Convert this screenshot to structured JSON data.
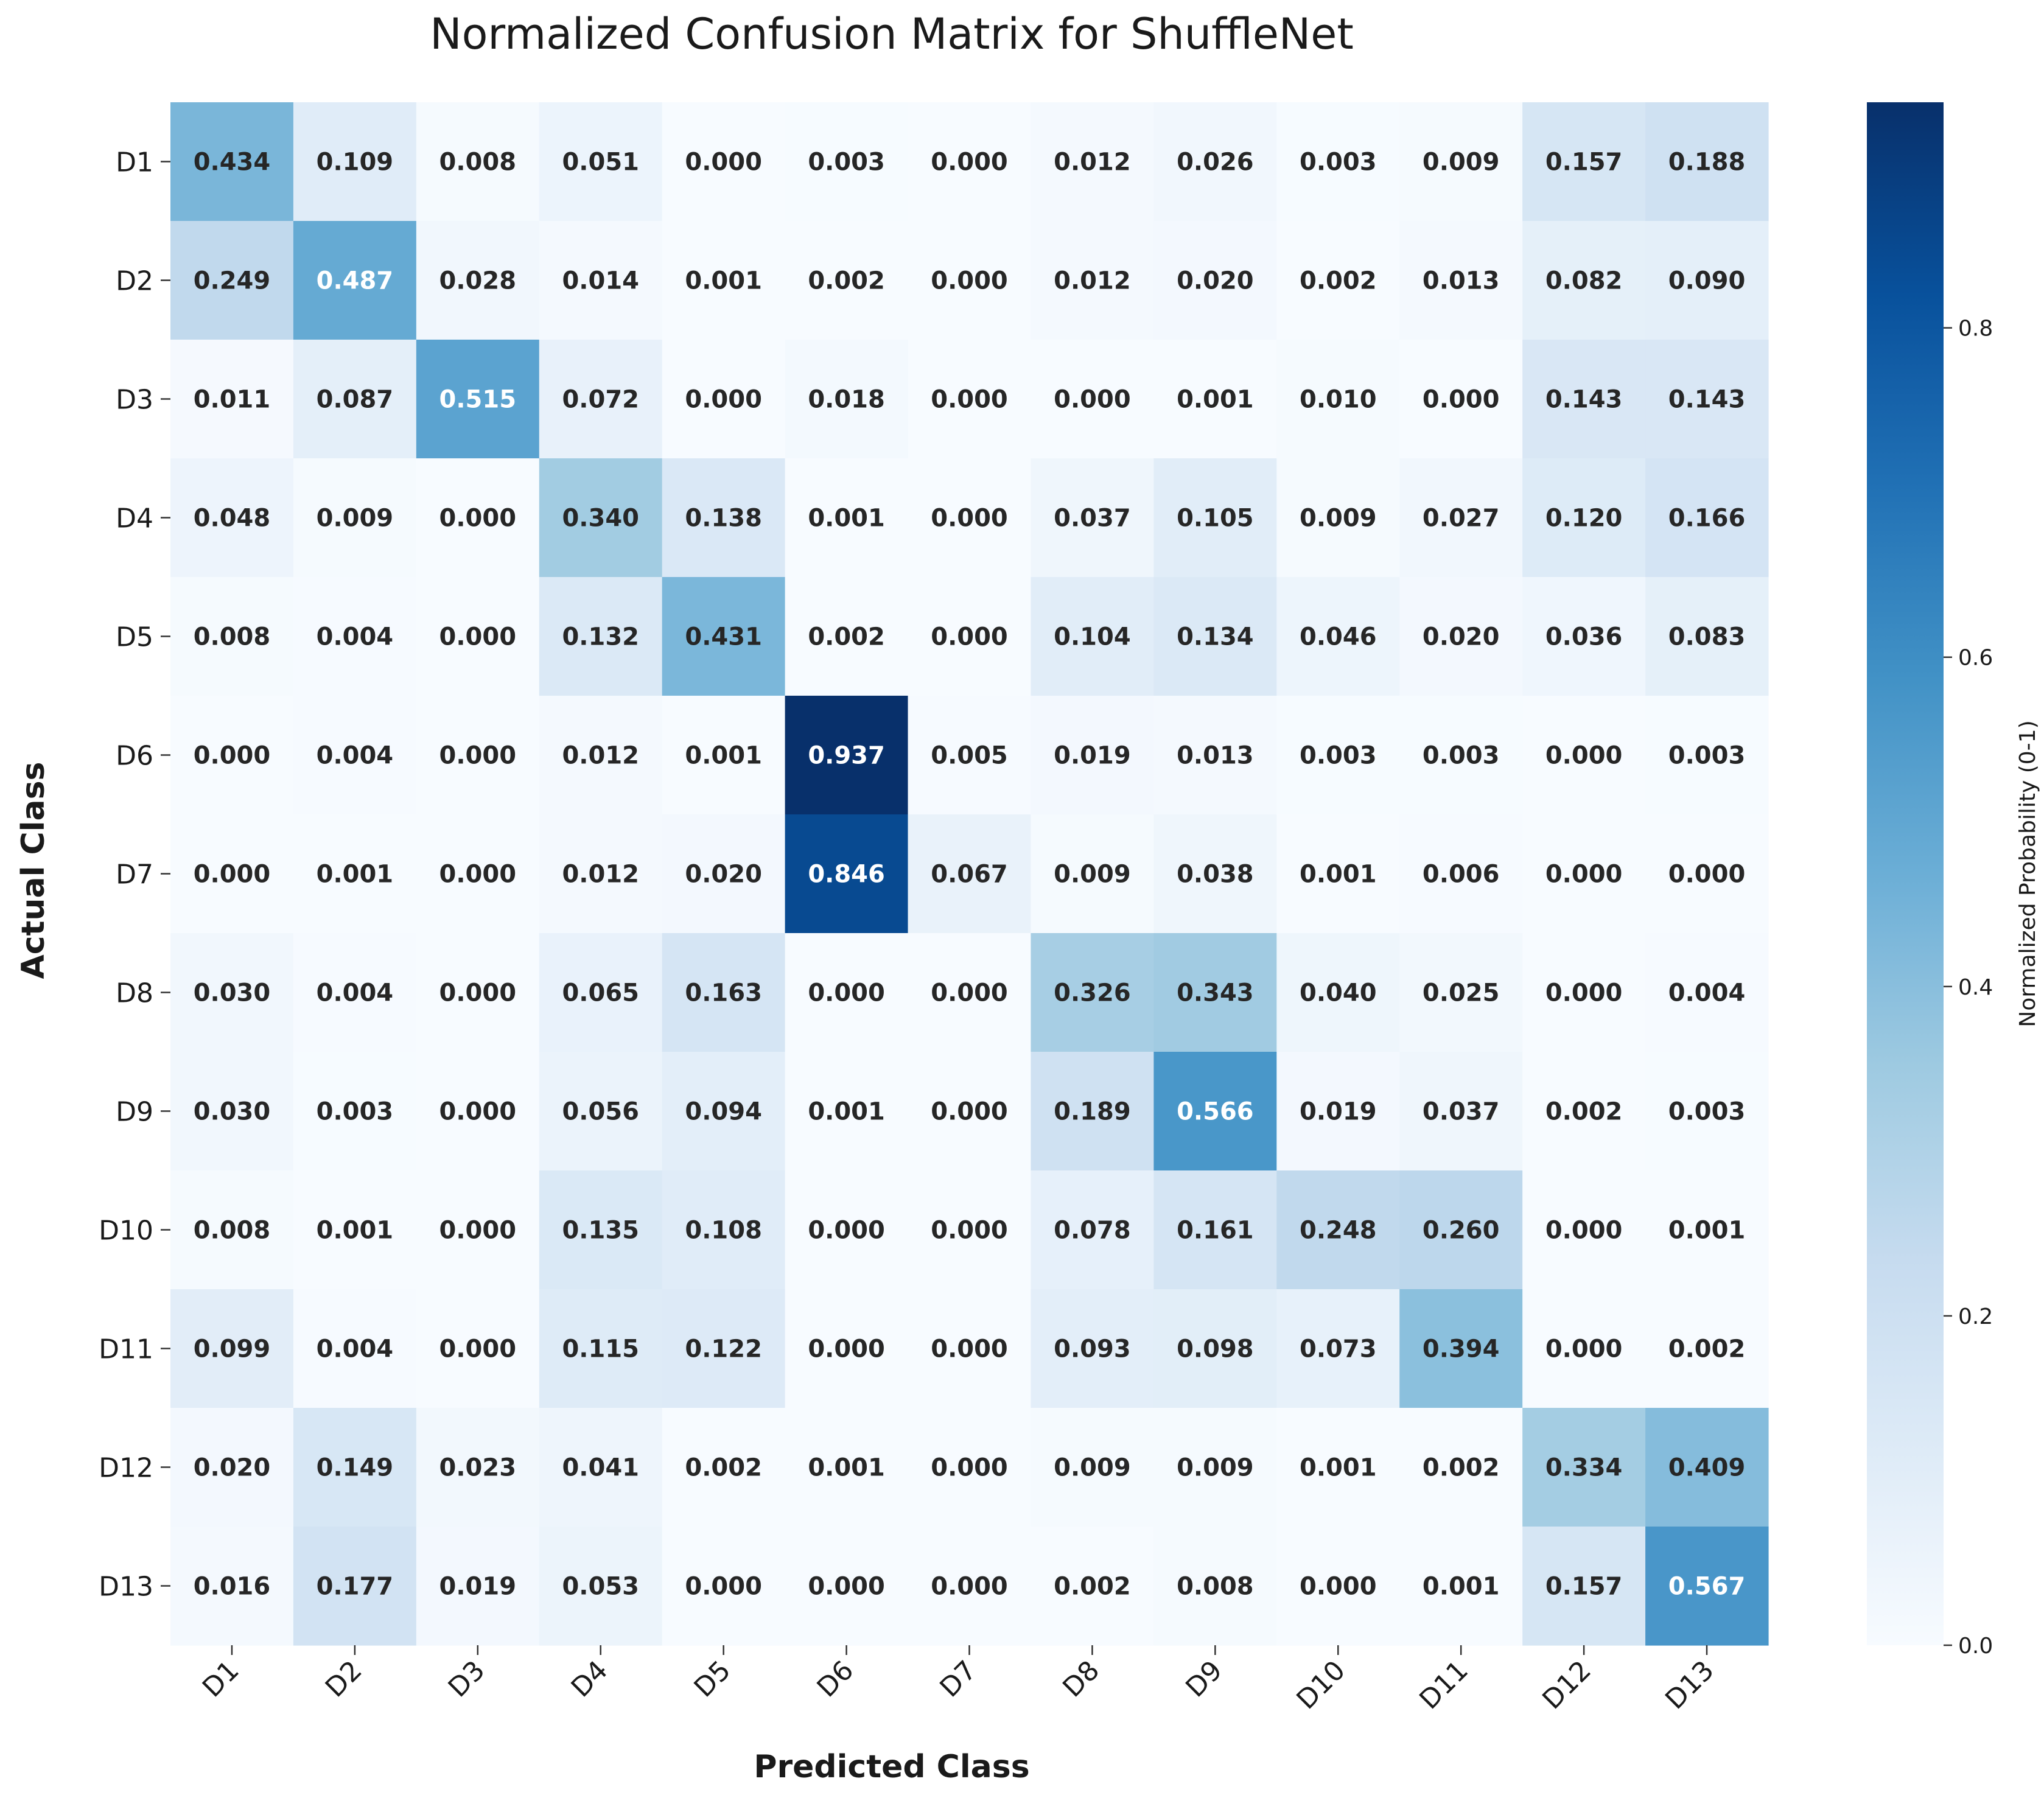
{
  "chart_data": {
    "type": "heatmap",
    "title": "Normalized Confusion Matrix for ShuffleNet",
    "xlabel": "Predicted Class",
    "ylabel": "Actual Class",
    "x_categories": [
      "D1",
      "D2",
      "D3",
      "D4",
      "D5",
      "D6",
      "D7",
      "D8",
      "D9",
      "D10",
      "D11",
      "D12",
      "D13"
    ],
    "y_categories": [
      "D1",
      "D2",
      "D3",
      "D4",
      "D5",
      "D6",
      "D7",
      "D8",
      "D9",
      "D10",
      "D11",
      "D12",
      "D13"
    ],
    "values": [
      [
        0.434,
        0.109,
        0.008,
        0.051,
        0.0,
        0.003,
        0.0,
        0.012,
        0.026,
        0.003,
        0.009,
        0.157,
        0.188
      ],
      [
        0.249,
        0.487,
        0.028,
        0.014,
        0.001,
        0.002,
        0.0,
        0.012,
        0.02,
        0.002,
        0.013,
        0.082,
        0.09
      ],
      [
        0.011,
        0.087,
        0.515,
        0.072,
        0.0,
        0.018,
        0.0,
        0.0,
        0.001,
        0.01,
        0.0,
        0.143,
        0.143
      ],
      [
        0.048,
        0.009,
        0.0,
        0.34,
        0.138,
        0.001,
        0.0,
        0.037,
        0.105,
        0.009,
        0.027,
        0.12,
        0.166
      ],
      [
        0.008,
        0.004,
        0.0,
        0.132,
        0.431,
        0.002,
        0.0,
        0.104,
        0.134,
        0.046,
        0.02,
        0.036,
        0.083
      ],
      [
        0.0,
        0.004,
        0.0,
        0.012,
        0.001,
        0.937,
        0.005,
        0.019,
        0.013,
        0.003,
        0.003,
        0.0,
        0.003
      ],
      [
        0.0,
        0.001,
        0.0,
        0.012,
        0.02,
        0.846,
        0.067,
        0.009,
        0.038,
        0.001,
        0.006,
        0.0,
        0.0
      ],
      [
        0.03,
        0.004,
        0.0,
        0.065,
        0.163,
        0.0,
        0.0,
        0.326,
        0.343,
        0.04,
        0.025,
        0.0,
        0.004
      ],
      [
        0.03,
        0.003,
        0.0,
        0.056,
        0.094,
        0.001,
        0.0,
        0.189,
        0.566,
        0.019,
        0.037,
        0.002,
        0.003
      ],
      [
        0.008,
        0.001,
        0.0,
        0.135,
        0.108,
        0.0,
        0.0,
        0.078,
        0.161,
        0.248,
        0.26,
        0.0,
        0.001
      ],
      [
        0.099,
        0.004,
        0.0,
        0.115,
        0.122,
        0.0,
        0.0,
        0.093,
        0.098,
        0.073,
        0.394,
        0.0,
        0.002
      ],
      [
        0.02,
        0.149,
        0.023,
        0.041,
        0.002,
        0.001,
        0.0,
        0.009,
        0.009,
        0.001,
        0.002,
        0.334,
        0.409
      ],
      [
        0.016,
        0.177,
        0.019,
        0.053,
        0.0,
        0.0,
        0.0,
        0.002,
        0.008,
        0.0,
        0.001,
        0.157,
        0.567
      ]
    ],
    "colormap": "Blues",
    "vmin": 0.0,
    "vmax": 0.937,
    "colorbar": {
      "label": "Normalized Probability (0-1)",
      "ticks": [
        0.0,
        0.2,
        0.4,
        0.6,
        0.8
      ],
      "tick_labels": [
        "0.0",
        "0.2",
        "0.4",
        "0.6",
        "0.8"
      ],
      "placement": "right"
    },
    "annotation_format": "0.000",
    "grid": false
  }
}
